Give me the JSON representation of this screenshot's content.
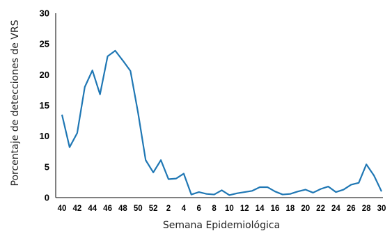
{
  "chart_data": {
    "type": "line",
    "title": "",
    "xlabel": "Semana Epidemiológica",
    "ylabel": "Porcentaje de detecciones de VRS",
    "ylim": [
      0,
      30
    ],
    "yticks": [
      "0",
      "5",
      "10",
      "15",
      "20",
      "25",
      "30"
    ],
    "grid": false,
    "legend": "none",
    "line_color": "#1f77b4",
    "axis_color": "#000000",
    "x_tick_labels": [
      "40",
      "42",
      "44",
      "46",
      "48",
      "50",
      "52",
      "2",
      "4",
      "6",
      "8",
      "10",
      "12",
      "14",
      "16",
      "18",
      "20",
      "22",
      "24",
      "26",
      "28",
      "30"
    ],
    "x": [
      "40",
      "41",
      "42",
      "43",
      "44",
      "45",
      "46",
      "47",
      "48",
      "49",
      "50",
      "51",
      "52",
      "1",
      "2",
      "3",
      "4",
      "5",
      "6",
      "7",
      "8",
      "9",
      "10",
      "11",
      "12",
      "13",
      "14",
      "15",
      "16",
      "17",
      "18",
      "19",
      "20",
      "21",
      "22",
      "23",
      "24",
      "25",
      "26",
      "27",
      "28",
      "29",
      "30"
    ],
    "series": [
      {
        "values": [
          13.5,
          8.2,
          10.5,
          18.0,
          20.7,
          16.8,
          23.0,
          23.9,
          22.3,
          20.6,
          13.8,
          6.1,
          4.1,
          6.1,
          3.0,
          3.1,
          3.9,
          0.5,
          0.9,
          0.6,
          0.5,
          1.2,
          0.4,
          0.7,
          0.9,
          1.1,
          1.7,
          1.7,
          1.0,
          0.5,
          0.6,
          1.0,
          1.3,
          0.8,
          1.4,
          1.8,
          0.9,
          1.3,
          2.1,
          2.4,
          5.4,
          3.6,
          1.0
        ]
      }
    ]
  }
}
